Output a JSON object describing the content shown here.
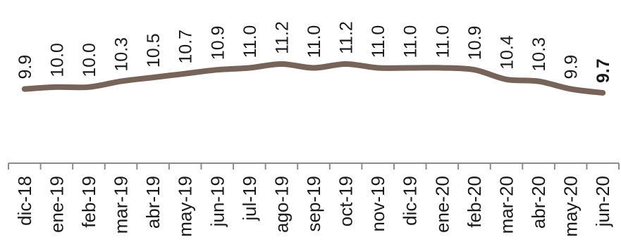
{
  "chart_data": {
    "type": "line",
    "categories": [
      "dic-18",
      "ene-19",
      "feb-19",
      "mar-19",
      "abr-19",
      "may-19",
      "jun-19",
      "jul-19",
      "ago-19",
      "sep-19",
      "oct-19",
      "nov-19",
      "dic-19",
      "ene-20",
      "feb-20",
      "mar-20",
      "abr-20",
      "may-20",
      "jun-20"
    ],
    "values": [
      9.9,
      10.0,
      10.0,
      10.3,
      10.5,
      10.7,
      10.9,
      11.0,
      11.2,
      11.0,
      11.2,
      11.0,
      11.0,
      11.0,
      10.9,
      10.4,
      10.3,
      9.9,
      9.7
    ],
    "value_labels": [
      "9.9",
      "10.0",
      "10.0",
      "10.3",
      "10.5",
      "10.7",
      "10.9",
      "11.0",
      "11.2",
      "11.0",
      "11.2",
      "11.0",
      "11.0",
      "11.0",
      "10.9",
      "10.4",
      "10.3",
      "9.9",
      "9.7"
    ],
    "highlight_last": true,
    "line_color": "#76645a",
    "axis_color": "#8c8c8c",
    "grid": false,
    "legend": "none"
  }
}
